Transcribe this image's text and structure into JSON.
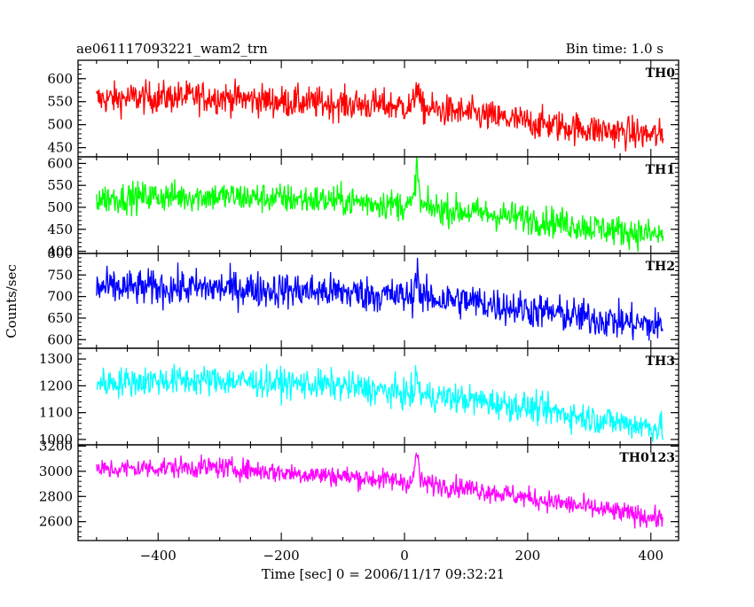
{
  "title_left": "ae061117093221_wam2_trn",
  "title_right": "Bin time: 1.0 s",
  "xlabel": "Time [sec] 0 = 2006/11/17 09:32:21",
  "ylabel": "Counts/sec",
  "chart_data": [
    {
      "type": "line",
      "panel": "TH0",
      "color": "#ff0000",
      "x_range": [
        -500,
        420
      ],
      "xlim": [
        -530,
        445
      ],
      "ylim": [
        430,
        640
      ],
      "yticks": [
        450,
        500,
        550,
        600
      ],
      "ytick_labels": [
        "450",
        "500",
        "550",
        "600"
      ],
      "trend_points": [
        [
          -500,
          555
        ],
        [
          -400,
          560
        ],
        [
          -300,
          560
        ],
        [
          -200,
          550
        ],
        [
          -100,
          545
        ],
        [
          0,
          540
        ],
        [
          100,
          525
        ],
        [
          200,
          505
        ],
        [
          300,
          490
        ],
        [
          420,
          475
        ]
      ],
      "noise_amplitude": 25,
      "peak": {
        "x": 20,
        "y": 590
      }
    },
    {
      "type": "line",
      "panel": "TH1",
      "color": "#00ff00",
      "x_range": [
        -500,
        420
      ],
      "xlim": [
        -530,
        445
      ],
      "ylim": [
        395,
        615
      ],
      "yticks": [
        400,
        450,
        500,
        550,
        600
      ],
      "ytick_labels": [
        "400",
        "450",
        "500",
        "550",
        "600"
      ],
      "trend_points": [
        [
          -500,
          520
        ],
        [
          -400,
          525
        ],
        [
          -300,
          525
        ],
        [
          -200,
          520
        ],
        [
          -100,
          515
        ],
        [
          0,
          505
        ],
        [
          100,
          490
        ],
        [
          200,
          475
        ],
        [
          300,
          455
        ],
        [
          420,
          435
        ]
      ],
      "noise_amplitude": 25,
      "peak": {
        "x": 20,
        "y": 590
      }
    },
    {
      "type": "line",
      "panel": "TH2",
      "color": "#0000ff",
      "x_range": [
        -500,
        420
      ],
      "xlim": [
        -530,
        445
      ],
      "ylim": [
        580,
        800
      ],
      "yticks": [
        600,
        650,
        700,
        750,
        800
      ],
      "ytick_labels": [
        "600",
        "650",
        "700",
        "750",
        "800"
      ],
      "trend_points": [
        [
          -500,
          720
        ],
        [
          -400,
          720
        ],
        [
          -300,
          720
        ],
        [
          -200,
          715
        ],
        [
          -100,
          710
        ],
        [
          0,
          700
        ],
        [
          100,
          690
        ],
        [
          200,
          670
        ],
        [
          300,
          650
        ],
        [
          420,
          630
        ]
      ],
      "noise_amplitude": 30,
      "peak": {
        "x": 20,
        "y": 760
      }
    },
    {
      "type": "line",
      "panel": "TH3",
      "color": "#00ffff",
      "x_range": [
        -500,
        420
      ],
      "xlim": [
        -530,
        445
      ],
      "ylim": [
        980,
        1340
      ],
      "yticks": [
        1000,
        1100,
        1200,
        1300
      ],
      "ytick_labels": [
        "1000",
        "1100",
        "1200",
        "1300"
      ],
      "trend_points": [
        [
          -500,
          1210
        ],
        [
          -400,
          1220
        ],
        [
          -300,
          1220
        ],
        [
          -200,
          1210
        ],
        [
          -100,
          1200
        ],
        [
          0,
          1170
        ],
        [
          100,
          1150
        ],
        [
          200,
          1120
        ],
        [
          300,
          1080
        ],
        [
          420,
          1040
        ]
      ],
      "noise_amplitude": 40,
      "peak": {
        "x": 20,
        "y": 1230
      }
    },
    {
      "type": "line",
      "panel": "TH0123",
      "color": "#ff00ff",
      "x_range": [
        -500,
        420
      ],
      "xlim": [
        -530,
        445
      ],
      "ylim": [
        2450,
        3210
      ],
      "yticks": [
        2600,
        2800,
        3000,
        3200
      ],
      "ytick_labels": [
        "2600",
        "2800",
        "3000",
        "3200"
      ],
      "trend_points": [
        [
          -500,
          3010
        ],
        [
          -400,
          3030
        ],
        [
          -300,
          3030
        ],
        [
          -200,
          2990
        ],
        [
          -100,
          2960
        ],
        [
          0,
          2920
        ],
        [
          100,
          2870
        ],
        [
          200,
          2790
        ],
        [
          300,
          2710
        ],
        [
          420,
          2620
        ]
      ],
      "noise_amplitude": 60,
      "peak": {
        "x": 20,
        "y": 3150
      }
    }
  ],
  "xaxis": {
    "ticks": [
      -400,
      -200,
      0,
      200,
      400
    ],
    "tick_labels": [
      "−400",
      "−200",
      "0",
      "200",
      "400"
    ],
    "minor_step": 50
  }
}
